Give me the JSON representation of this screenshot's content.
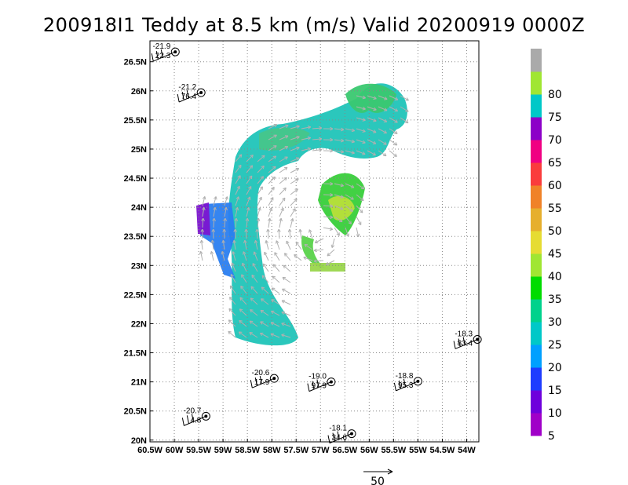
{
  "chart_data": {
    "type": "vector-field",
    "title": "200918I1 Teddy at 8.5 km (m/s) Valid 20200919 0000Z",
    "x_ticks": [
      {
        "lon": -60.5,
        "label": "60.5W"
      },
      {
        "lon": -60.0,
        "label": "60W"
      },
      {
        "lon": -59.5,
        "label": "59.5W"
      },
      {
        "lon": -59.0,
        "label": "59W"
      },
      {
        "lon": -58.5,
        "label": "58.5W"
      },
      {
        "lon": -58.0,
        "label": "58W"
      },
      {
        "lon": -57.5,
        "label": "57.5W"
      },
      {
        "lon": -57.0,
        "label": "57W"
      },
      {
        "lon": -56.5,
        "label": "56.5W"
      },
      {
        "lon": -56.0,
        "label": "56W"
      },
      {
        "lon": -55.5,
        "label": "55.5W"
      },
      {
        "lon": -55.0,
        "label": "55W"
      },
      {
        "lon": -54.5,
        "label": "54.5W"
      },
      {
        "lon": -54.0,
        "label": "54W"
      }
    ],
    "y_ticks": [
      {
        "lat": 20.0,
        "label": "20N"
      },
      {
        "lat": 20.5,
        "label": "20.5N"
      },
      {
        "lat": 21.0,
        "label": "21N"
      },
      {
        "lat": 21.5,
        "label": "21.5N"
      },
      {
        "lat": 22.0,
        "label": "22N"
      },
      {
        "lat": 22.5,
        "label": "22.5N"
      },
      {
        "lat": 23.0,
        "label": "23N"
      },
      {
        "lat": 23.5,
        "label": "23.5N"
      },
      {
        "lat": 24.0,
        "label": "24N"
      },
      {
        "lat": 24.5,
        "label": "24.5N"
      },
      {
        "lat": 25.0,
        "label": "25N"
      },
      {
        "lat": 25.5,
        "label": "25.5N"
      },
      {
        "lat": 26.0,
        "label": "26N"
      },
      {
        "lat": 26.5,
        "label": "26.5N"
      }
    ],
    "xlim": [
      -60.5,
      -53.75
    ],
    "ylim": [
      19.97,
      26.86
    ],
    "grid": true,
    "colorbar": {
      "labels": [
        "5",
        "10",
        "15",
        "20",
        "25",
        "30",
        "35",
        "40",
        "45",
        "50",
        "55",
        "60",
        "65",
        "70",
        "75",
        "80"
      ],
      "colors": [
        "#a000c8",
        "#6e00dc",
        "#1e3cff",
        "#00a0ff",
        "#00c8c8",
        "#00d28c",
        "#00dc00",
        "#a0e632",
        "#e6dc32",
        "#e6af2d",
        "#f08228",
        "#fa3c3c",
        "#f00082",
        "#8c00c8",
        "#00c8c8",
        "#a0e632",
        "#aaaaaa"
      ]
    },
    "reference_vector": {
      "value": 50,
      "label": "50"
    },
    "stations": [
      {
        "lon": -59.98,
        "lat": 26.67,
        "top": "-21.9",
        "bottom": "22.3"
      },
      {
        "lon": -59.45,
        "lat": 25.97,
        "top": "-21.2",
        "bottom": "76.4"
      },
      {
        "lon": -57.95,
        "lat": 21.06,
        "top": "-20.6",
        "bottom": "17.9"
      },
      {
        "lon": -56.78,
        "lat": 21.0,
        "top": "-19.0",
        "bottom": "97.9"
      },
      {
        "lon": -55.0,
        "lat": 21.01,
        "top": "-18.8",
        "bottom": "95.3"
      },
      {
        "lon": -53.78,
        "lat": 21.73,
        "top": "-18.3",
        "bottom": "83.4"
      },
      {
        "lon": -59.35,
        "lat": 20.41,
        "top": "-20.7",
        "bottom": "4.8"
      },
      {
        "lon": -56.36,
        "lat": 20.11,
        "top": "-18.1",
        "bottom": "34.6"
      }
    ]
  }
}
